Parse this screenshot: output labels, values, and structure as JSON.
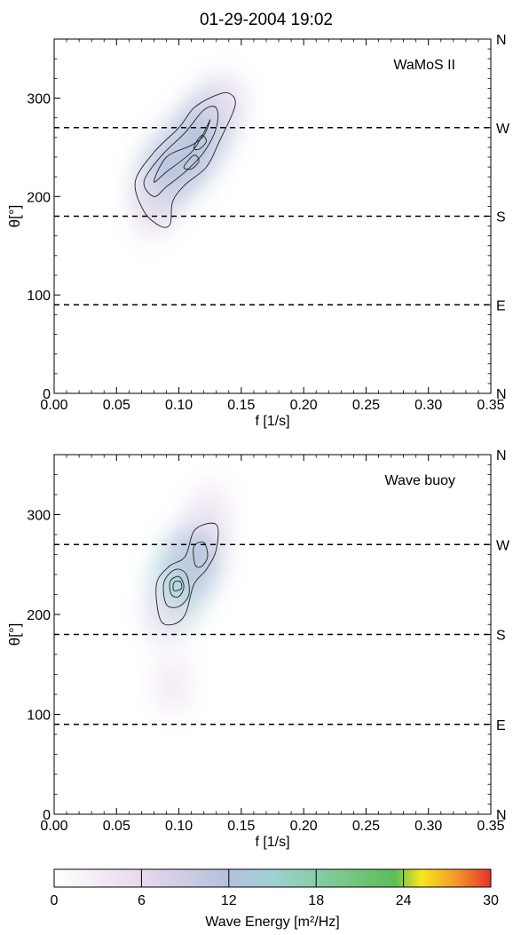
{
  "title": "01-29-2004 19:02",
  "chart_data": [
    {
      "type": "heatmap",
      "label": "WaMoS II",
      "xlabel": "f [1/s]",
      "ylabel": "θ[°]",
      "xlim": [
        0.0,
        0.35
      ],
      "ylim": [
        0,
        360
      ],
      "xticks": [
        "0.00",
        "0.05",
        "0.10",
        "0.15",
        "0.20",
        "0.25",
        "0.30",
        "0.35"
      ],
      "yticks": [
        "0",
        "100",
        "200",
        "300"
      ],
      "direction_labels": [
        {
          "theta": 360,
          "label": "N"
        },
        {
          "theta": 270,
          "label": "W"
        },
        {
          "theta": 180,
          "label": "S"
        },
        {
          "theta": 90,
          "label": "E"
        },
        {
          "theta": 0,
          "label": "N"
        }
      ],
      "reference_lines_theta": [
        270,
        180,
        90
      ],
      "peaks": [
        {
          "f": 0.11,
          "theta": 238,
          "energy": 11
        },
        {
          "f": 0.115,
          "theta": 258,
          "energy": 10
        },
        {
          "f": 0.09,
          "theta": 228,
          "energy": 10
        }
      ],
      "energy_field": [
        {
          "f": 0.083,
          "theta": 212,
          "energy": 9
        },
        {
          "f": 0.095,
          "theta": 230,
          "energy": 11
        },
        {
          "f": 0.107,
          "theta": 245,
          "energy": 11
        },
        {
          "f": 0.118,
          "theta": 262,
          "energy": 10
        },
        {
          "f": 0.128,
          "theta": 282,
          "energy": 7
        },
        {
          "f": 0.078,
          "theta": 190,
          "energy": 5
        },
        {
          "f": 0.14,
          "theta": 295,
          "energy": 3
        }
      ],
      "contours": [
        {
          "level": "outer",
          "points": [
            [
              0.085,
              170
            ],
            [
              0.072,
              185
            ],
            [
              0.065,
              215
            ],
            [
              0.08,
              245
            ],
            [
              0.1,
              270
            ],
            [
              0.112,
              290
            ],
            [
              0.128,
              302
            ],
            [
              0.14,
              305
            ],
            [
              0.145,
              292
            ],
            [
              0.132,
              255
            ],
            [
              0.122,
              230
            ],
            [
              0.105,
              212
            ],
            [
              0.095,
              195
            ],
            [
              0.093,
              172
            ]
          ]
        },
        {
          "level": "middle",
          "points": [
            [
              0.08,
              200
            ],
            [
              0.072,
              215
            ],
            [
              0.085,
              240
            ],
            [
              0.105,
              265
            ],
            [
              0.12,
              288
            ],
            [
              0.13,
              290
            ],
            [
              0.13,
              270
            ],
            [
              0.12,
              245
            ],
            [
              0.105,
              225
            ],
            [
              0.09,
              210
            ]
          ]
        },
        {
          "level": "inner",
          "points": [
            [
              0.08,
              215
            ],
            [
              0.09,
              240
            ],
            [
              0.11,
              252
            ],
            [
              0.12,
              262
            ],
            [
              0.125,
              278
            ],
            [
              0.12,
              265
            ],
            [
              0.11,
              245
            ],
            [
              0.09,
              225
            ]
          ]
        },
        {
          "level": "core-a",
          "points": [
            [
              0.104,
              230
            ],
            [
              0.112,
              242
            ],
            [
              0.116,
              236
            ],
            [
              0.11,
              228
            ]
          ]
        },
        {
          "level": "core-b",
          "points": [
            [
              0.112,
              250
            ],
            [
              0.118,
              262
            ],
            [
              0.122,
              256
            ],
            [
              0.116,
              248
            ]
          ]
        }
      ]
    },
    {
      "type": "heatmap",
      "label": "Wave buoy",
      "xlabel": "f [1/s]",
      "ylabel": "θ[°]",
      "xlim": [
        0.0,
        0.35
      ],
      "ylim": [
        0,
        360
      ],
      "xticks": [
        "0.00",
        "0.05",
        "0.10",
        "0.15",
        "0.20",
        "0.25",
        "0.30",
        "0.35"
      ],
      "yticks": [
        "0",
        "100",
        "200",
        "300"
      ],
      "direction_labels": [
        {
          "theta": 360,
          "label": "N"
        },
        {
          "theta": 270,
          "label": "W"
        },
        {
          "theta": 180,
          "label": "S"
        },
        {
          "theta": 90,
          "label": "E"
        },
        {
          "theta": 0,
          "label": "N"
        }
      ],
      "reference_lines_theta": [
        270,
        180,
        90
      ],
      "peaks": [
        {
          "f": 0.098,
          "theta": 228,
          "energy": 14
        },
        {
          "f": 0.118,
          "theta": 262,
          "energy": 9
        }
      ],
      "energy_field": [
        {
          "f": 0.098,
          "theta": 228,
          "energy": 14
        },
        {
          "f": 0.108,
          "theta": 248,
          "energy": 10
        },
        {
          "f": 0.118,
          "theta": 262,
          "energy": 9
        },
        {
          "f": 0.125,
          "theta": 300,
          "energy": 5
        },
        {
          "f": 0.088,
          "theta": 200,
          "energy": 5
        },
        {
          "f": 0.095,
          "theta": 130,
          "energy": 2
        }
      ],
      "contours": [
        {
          "level": "outer",
          "points": [
            [
              0.085,
              195
            ],
            [
              0.082,
              230
            ],
            [
              0.092,
              248
            ],
            [
              0.105,
              258
            ],
            [
              0.113,
              285
            ],
            [
              0.13,
              290
            ],
            [
              0.13,
              265
            ],
            [
              0.122,
              245
            ],
            [
              0.112,
              230
            ],
            [
              0.105,
              200
            ],
            [
              0.095,
              190
            ]
          ]
        },
        {
          "level": "middle",
          "points": [
            [
              0.09,
              210
            ],
            [
              0.088,
              232
            ],
            [
              0.097,
              245
            ],
            [
              0.106,
              240
            ],
            [
              0.108,
              220
            ],
            [
              0.1,
              208
            ]
          ]
        },
        {
          "level": "inner",
          "points": [
            [
              0.094,
              220
            ],
            [
              0.093,
              233
            ],
            [
              0.1,
              238
            ],
            [
              0.104,
              228
            ],
            [
              0.1,
              218
            ]
          ]
        },
        {
          "level": "core",
          "points": [
            [
              0.096,
              224
            ],
            [
              0.096,
              232
            ],
            [
              0.101,
              233
            ],
            [
              0.102,
              226
            ]
          ]
        },
        {
          "level": "upper",
          "points": [
            [
              0.113,
              250
            ],
            [
              0.112,
              268
            ],
            [
              0.12,
              272
            ],
            [
              0.123,
              258
            ],
            [
              0.118,
              248
            ]
          ]
        }
      ]
    }
  ],
  "colorbar": {
    "label": "Wave Energy [m²/Hz]",
    "min": 0,
    "max": 30,
    "ticks": [
      "0",
      "6",
      "12",
      "18",
      "24",
      "30"
    ],
    "stops": [
      "#ffffff",
      "#e8d8ec",
      "#b4c0dc",
      "#9ed2d6",
      "#7cc98e",
      "#5bbd5a",
      "#f6e81c",
      "#f39a28",
      "#e8312a"
    ]
  }
}
